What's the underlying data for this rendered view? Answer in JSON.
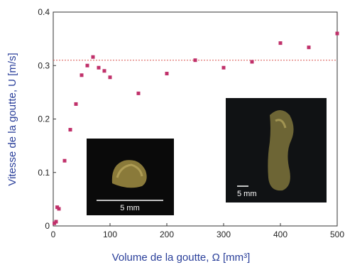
{
  "chart_data": {
    "type": "scatter",
    "x_label": "Volume de la goutte, Ω [mm³]",
    "y_label": "Vitesse de la goutte, U [m/s]",
    "series": [
      {
        "color": "#c0306a",
        "x": [
          2,
          5,
          7,
          10,
          20,
          30,
          40,
          50,
          60,
          70,
          80,
          90,
          100,
          150,
          200,
          250,
          300,
          350,
          400,
          450,
          500
        ],
        "values": [
          0.005,
          0.008,
          0.035,
          0.032,
          0.122,
          0.18,
          0.228,
          0.282,
          0.3,
          0.316,
          0.296,
          0.29,
          0.278,
          0.248,
          0.285,
          0.31,
          0.296,
          0.307,
          0.342,
          0.334,
          0.36
        ]
      }
    ],
    "reference_line": {
      "value": 0.31,
      "color": "#d9534f"
    },
    "xlim": [
      0,
      500
    ],
    "xticks": [
      0,
      100,
      200,
      300,
      400,
      500
    ],
    "ylim": [
      0,
      0.4
    ],
    "yticks": [
      0,
      0.1,
      0.2,
      0.3,
      0.4
    ],
    "insets": [
      {
        "scale_label": "5 mm"
      },
      {
        "scale_label": "5 mm"
      }
    ]
  }
}
